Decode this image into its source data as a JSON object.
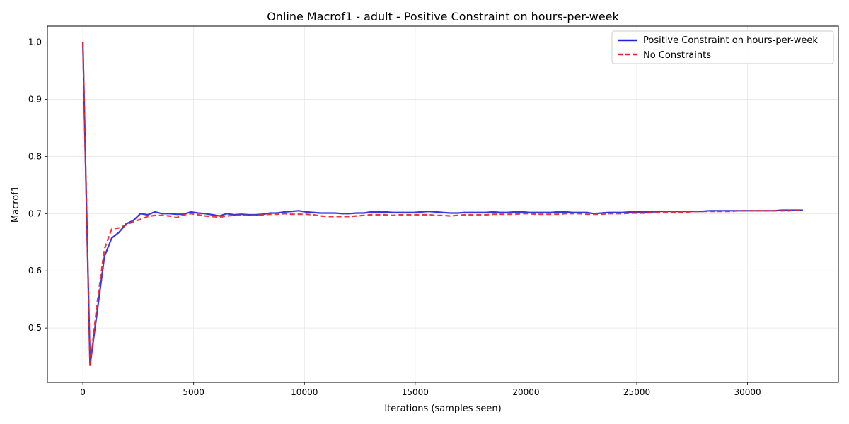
{
  "chart_data": {
    "type": "line",
    "title": "Online Macrof1 - adult - Positive Constraint on hours-per-week",
    "xlabel": "Iterations (samples seen)",
    "ylabel": "Macrof1",
    "xlim": [
      -1600,
      34100
    ],
    "ylim": [
      0.405,
      1.028
    ],
    "xticks": [
      0,
      5000,
      10000,
      15000,
      20000,
      25000,
      30000
    ],
    "yticks": [
      0.5,
      0.6,
      0.7,
      0.8,
      0.9,
      1.0
    ],
    "xtick_labels": [
      "0",
      "5000",
      "10000",
      "15000",
      "20000",
      "25000",
      "30000"
    ],
    "ytick_labels": [
      "0.5",
      "0.6",
      "0.7",
      "0.8",
      "0.9",
      "1.0"
    ],
    "grid": true,
    "legend_position": "top-right",
    "series": [
      {
        "name": "Positive Constraint on hours-per-week",
        "color": "#2222dd",
        "style": "solid",
        "x": [
          0,
          325,
          650,
          975,
          1300,
          1625,
          1950,
          2275,
          2600,
          2925,
          3250,
          3575,
          3900,
          4225,
          4550,
          4875,
          5200,
          5525,
          5850,
          6175,
          6500,
          6825,
          7150,
          7475,
          7800,
          8125,
          8450,
          8775,
          9100,
          9425,
          9750,
          10075,
          10400,
          10725,
          11050,
          11375,
          11700,
          12025,
          12350,
          12675,
          13000,
          13325,
          13650,
          13975,
          14300,
          14625,
          14950,
          15275,
          15600,
          15925,
          16250,
          16575,
          16900,
          17225,
          17550,
          17875,
          18200,
          18525,
          18850,
          19175,
          19500,
          19825,
          20150,
          20475,
          20800,
          21125,
          21450,
          21775,
          22100,
          22425,
          22750,
          23075,
          23400,
          23725,
          24050,
          24375,
          24700,
          25025,
          25350,
          25675,
          26000,
          26325,
          26650,
          26975,
          27300,
          27625,
          27950,
          28275,
          28600,
          28925,
          29250,
          29575,
          29900,
          30225,
          30550,
          30875,
          31200,
          31525,
          31850,
          32175,
          32500
        ],
        "y": [
          1.0,
          0.435,
          0.53,
          0.625,
          0.657,
          0.667,
          0.682,
          0.688,
          0.7,
          0.698,
          0.703,
          0.7,
          0.7,
          0.699,
          0.699,
          0.703,
          0.701,
          0.7,
          0.698,
          0.696,
          0.7,
          0.698,
          0.699,
          0.698,
          0.698,
          0.699,
          0.701,
          0.701,
          0.703,
          0.704,
          0.705,
          0.703,
          0.702,
          0.701,
          0.701,
          0.701,
          0.7,
          0.7,
          0.701,
          0.701,
          0.703,
          0.703,
          0.703,
          0.702,
          0.702,
          0.702,
          0.702,
          0.703,
          0.704,
          0.703,
          0.702,
          0.701,
          0.701,
          0.702,
          0.702,
          0.702,
          0.702,
          0.703,
          0.702,
          0.702,
          0.703,
          0.703,
          0.702,
          0.702,
          0.702,
          0.702,
          0.703,
          0.703,
          0.702,
          0.702,
          0.702,
          0.7,
          0.701,
          0.702,
          0.702,
          0.702,
          0.703,
          0.703,
          0.703,
          0.703,
          0.704,
          0.704,
          0.704,
          0.704,
          0.704,
          0.704,
          0.704,
          0.705,
          0.705,
          0.705,
          0.705,
          0.705,
          0.705,
          0.705,
          0.705,
          0.705,
          0.705,
          0.706,
          0.706,
          0.706,
          0.706
        ]
      },
      {
        "name": "No Constraints",
        "color": "#ee2222",
        "style": "dashed",
        "x": [
          0,
          325,
          650,
          975,
          1300,
          1625,
          1950,
          2275,
          2600,
          2925,
          3250,
          3575,
          3900,
          4225,
          4550,
          4875,
          5200,
          5525,
          5850,
          6175,
          6500,
          6825,
          7150,
          7475,
          7800,
          8125,
          8450,
          8775,
          9100,
          9425,
          9750,
          10075,
          10400,
          10725,
          11050,
          11375,
          11700,
          12025,
          12350,
          12675,
          13000,
          13325,
          13650,
          13975,
          14300,
          14625,
          14950,
          15275,
          15600,
          15925,
          16250,
          16575,
          16900,
          17225,
          17550,
          17875,
          18200,
          18525,
          18850,
          19175,
          19500,
          19825,
          20150,
          20475,
          20800,
          21125,
          21450,
          21775,
          22100,
          22425,
          22750,
          23075,
          23400,
          23725,
          24050,
          24375,
          24700,
          25025,
          25350,
          25675,
          26000,
          26325,
          26650,
          26975,
          27300,
          27625,
          27950,
          28275,
          28600,
          28925,
          29250,
          29575,
          29900,
          30225,
          30550,
          30875,
          31200,
          31525,
          31850,
          32175,
          32500
        ],
        "y": [
          1.0,
          0.433,
          0.545,
          0.638,
          0.673,
          0.675,
          0.68,
          0.686,
          0.69,
          0.695,
          0.697,
          0.697,
          0.696,
          0.693,
          0.698,
          0.7,
          0.698,
          0.696,
          0.695,
          0.694,
          0.696,
          0.697,
          0.697,
          0.697,
          0.697,
          0.698,
          0.699,
          0.699,
          0.7,
          0.699,
          0.699,
          0.699,
          0.698,
          0.696,
          0.695,
          0.695,
          0.695,
          0.695,
          0.696,
          0.697,
          0.698,
          0.698,
          0.698,
          0.697,
          0.698,
          0.698,
          0.698,
          0.698,
          0.698,
          0.697,
          0.697,
          0.696,
          0.697,
          0.698,
          0.698,
          0.698,
          0.698,
          0.699,
          0.699,
          0.699,
          0.699,
          0.7,
          0.7,
          0.699,
          0.699,
          0.699,
          0.699,
          0.7,
          0.7,
          0.7,
          0.699,
          0.699,
          0.699,
          0.7,
          0.7,
          0.7,
          0.701,
          0.701,
          0.701,
          0.702,
          0.702,
          0.703,
          0.703,
          0.703,
          0.703,
          0.704,
          0.704,
          0.704,
          0.704,
          0.704,
          0.704,
          0.705,
          0.705,
          0.705,
          0.705,
          0.705,
          0.705,
          0.705,
          0.705,
          0.706,
          0.706
        ]
      }
    ]
  }
}
